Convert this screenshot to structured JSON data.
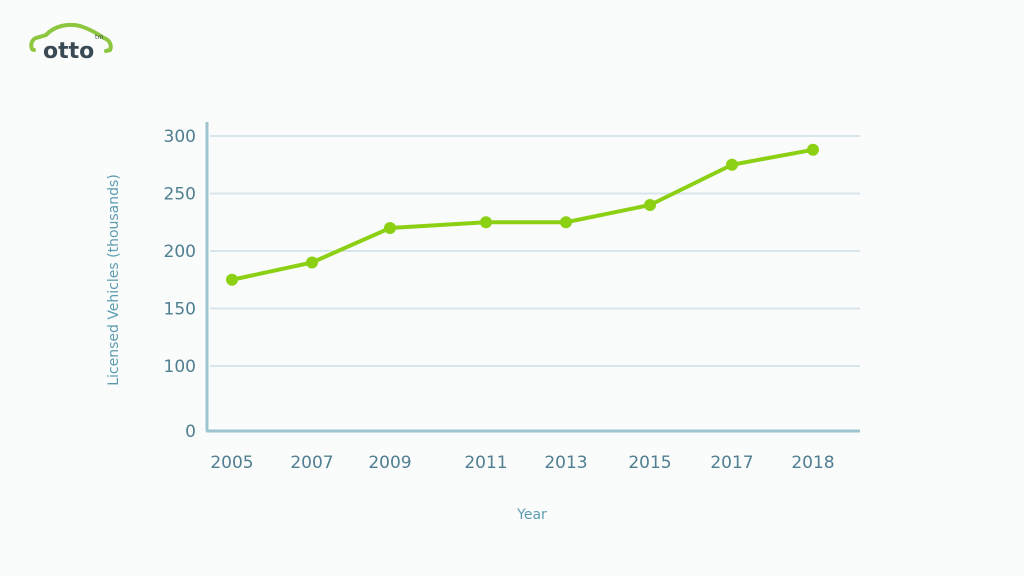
{
  "brand": {
    "name": "otto",
    "trademark": "tm",
    "colors": {
      "green": "#8dc63f",
      "text": "#3a4a55"
    }
  },
  "colors": {
    "line": "#8cd014",
    "axis": "#9ec4d0",
    "grid": "#d7e6ec",
    "tick_label": "#4f7f91",
    "axis_title": "#5d9cb0",
    "background": "#fafbfb"
  },
  "chart_data": {
    "type": "line",
    "title": "",
    "xlabel": "Year",
    "ylabel": "Licensed Vehicles (thousands)",
    "categories": [
      "2005",
      "2007",
      "2009",
      "2011",
      "2013",
      "2015",
      "2017",
      "2018"
    ],
    "series": [
      {
        "name": "Licensed Vehicles (thousands)",
        "values": [
          175,
          190,
          220,
          225,
          225,
          240,
          275,
          288
        ]
      }
    ],
    "yticks": [
      0,
      100,
      150,
      200,
      250,
      300
    ],
    "ylim": [
      0,
      300
    ],
    "y_axis_break": "between 0 and 100",
    "grid": true,
    "legend": "none",
    "markers": true
  }
}
